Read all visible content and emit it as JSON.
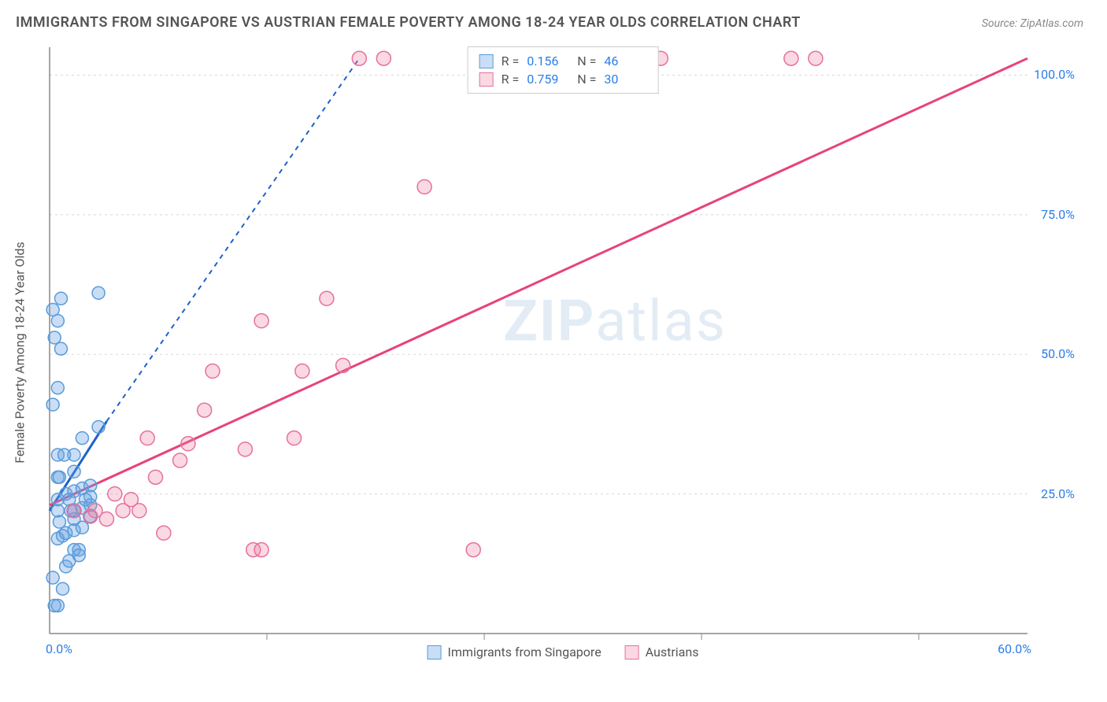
{
  "title": "IMMIGRANTS FROM SINGAPORE VS AUSTRIAN FEMALE POVERTY AMONG 18-24 YEAR OLDS CORRELATION CHART",
  "source": "Source: ZipAtlas.com",
  "watermark_a": "ZIP",
  "watermark_b": "atlas",
  "y_axis_label": "Female Poverty Among 18-24 Year Olds",
  "chart": {
    "type": "scatter",
    "background_color": "#ffffff",
    "grid_color": "#d8d8d8",
    "axis_color": "#888888",
    "xlim": [
      0,
      60
    ],
    "ylim": [
      0,
      105
    ],
    "x_ticks": [
      {
        "v": 0,
        "label": "0.0%"
      },
      {
        "v": 60,
        "label": "60.0%"
      }
    ],
    "x_minor_ticks": [
      13.33,
      26.67,
      40,
      53.33
    ],
    "y_ticks": [
      {
        "v": 25,
        "label": "25.0%"
      },
      {
        "v": 50,
        "label": "50.0%"
      },
      {
        "v": 75,
        "label": "75.0%"
      },
      {
        "v": 100,
        "label": "100.0%"
      }
    ],
    "series": [
      {
        "name": "Immigrants from Singapore",
        "color_fill": "rgba(100,160,230,0.35)",
        "color_stroke": "#5a9bd8",
        "trend_color": "#1e62c9",
        "trend_solid": [
          [
            0,
            22
          ],
          [
            3.5,
            38
          ]
        ],
        "trend_dash": [
          [
            3.5,
            38
          ],
          [
            19,
            103
          ]
        ],
        "r": "0.156",
        "n": "46",
        "marker_radius": 8,
        "points": [
          [
            0.3,
            5
          ],
          [
            0.5,
            5
          ],
          [
            0.8,
            8
          ],
          [
            0.2,
            10
          ],
          [
            1.0,
            12
          ],
          [
            1.2,
            13
          ],
          [
            1.5,
            15
          ],
          [
            1.8,
            15
          ],
          [
            0.5,
            17
          ],
          [
            0.8,
            17.5
          ],
          [
            1.0,
            18
          ],
          [
            1.5,
            18.5
          ],
          [
            2.0,
            19
          ],
          [
            0.6,
            20
          ],
          [
            1.5,
            20.5
          ],
          [
            2.5,
            21
          ],
          [
            0.5,
            22
          ],
          [
            1.5,
            22
          ],
          [
            2.0,
            22.5
          ],
          [
            2.5,
            23
          ],
          [
            0.5,
            24
          ],
          [
            2.5,
            24.5
          ],
          [
            1.0,
            25
          ],
          [
            1.5,
            25.5
          ],
          [
            2.0,
            26
          ],
          [
            2.5,
            26.5
          ],
          [
            0.5,
            28
          ],
          [
            1.5,
            29
          ],
          [
            0.5,
            32
          ],
          [
            1.5,
            32
          ],
          [
            2.0,
            35
          ],
          [
            3.0,
            37
          ],
          [
            0.2,
            41
          ],
          [
            0.5,
            44
          ],
          [
            0.7,
            51
          ],
          [
            0.3,
            53
          ],
          [
            0.5,
            56
          ],
          [
            0.2,
            58
          ],
          [
            0.7,
            60
          ],
          [
            3.0,
            61
          ],
          [
            1.2,
            24
          ],
          [
            1.8,
            14
          ],
          [
            2.2,
            24
          ],
          [
            0.9,
            32
          ],
          [
            1.3,
            22
          ],
          [
            0.6,
            28
          ]
        ]
      },
      {
        "name": "Austrians",
        "color_fill": "rgba(240,130,160,0.30)",
        "color_stroke": "#e670a0",
        "trend_color": "#e8427c",
        "trend_solid": [
          [
            0,
            23
          ],
          [
            60,
            103
          ]
        ],
        "trend_dash": null,
        "r": "0.759",
        "n": "30",
        "marker_radius": 9,
        "points": [
          [
            1.5,
            22
          ],
          [
            2.5,
            21
          ],
          [
            2.8,
            22
          ],
          [
            3.5,
            20.5
          ],
          [
            4.0,
            25
          ],
          [
            4.5,
            22
          ],
          [
            5.0,
            24
          ],
          [
            5.5,
            22
          ],
          [
            6.0,
            35
          ],
          [
            6.5,
            28
          ],
          [
            7.0,
            18
          ],
          [
            8.0,
            31
          ],
          [
            8.5,
            34
          ],
          [
            9.5,
            40
          ],
          [
            10.0,
            47
          ],
          [
            12.0,
            33
          ],
          [
            13.0,
            56
          ],
          [
            15.0,
            35
          ],
          [
            15.5,
            47
          ],
          [
            17.0,
            60
          ],
          [
            18.0,
            48
          ],
          [
            19.0,
            103
          ],
          [
            20.5,
            103
          ],
          [
            23.0,
            80
          ],
          [
            26.0,
            15
          ],
          [
            12.5,
            15
          ],
          [
            13.0,
            15
          ],
          [
            37.5,
            103
          ],
          [
            45.5,
            103
          ],
          [
            47.0,
            103
          ]
        ]
      }
    ]
  },
  "stats_legend_label_r": "R  =",
  "stats_legend_label_n": "N  =",
  "legend": {
    "series_a": "Immigrants from Singapore",
    "series_b": "Austrians"
  }
}
